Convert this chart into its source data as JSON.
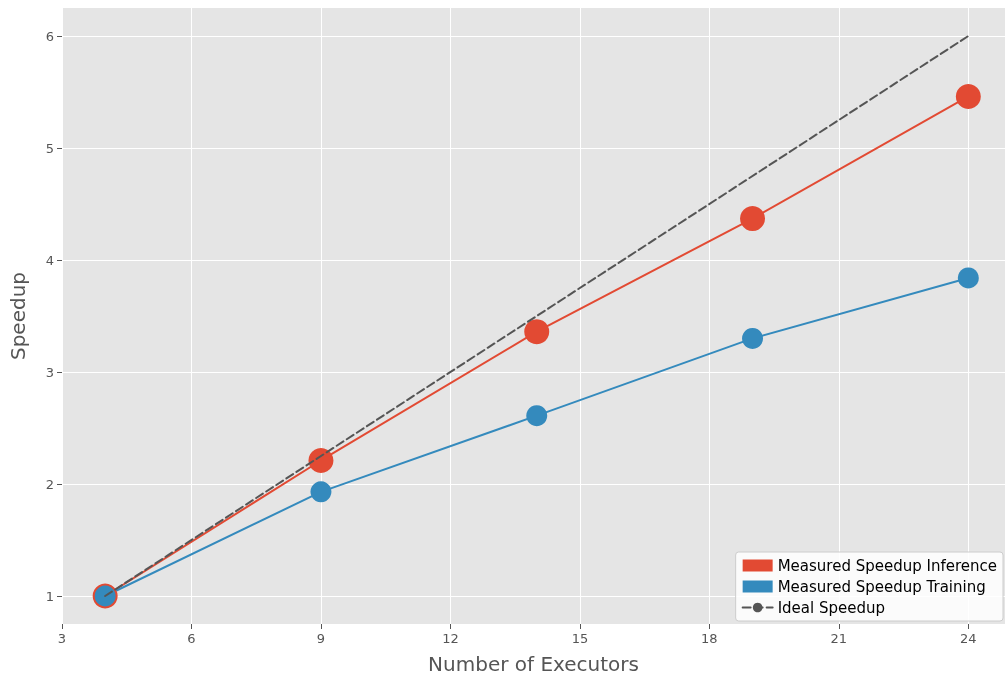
{
  "chart_data": {
    "type": "line",
    "xlabel": "Number of Executors",
    "ylabel": "Speedup",
    "xlim": [
      3,
      24.85
    ],
    "xticks": [
      3,
      6,
      9,
      12,
      15,
      18,
      21,
      24
    ],
    "ylim": [
      0.75,
      6.25
    ],
    "yticks": [
      1,
      2,
      3,
      4,
      5,
      6
    ],
    "grid": true,
    "legend": "bottom right",
    "marker": "circle",
    "series": [
      {
        "name": "Measured Speedup Inference",
        "color": "#e24a33",
        "x": [
          4,
          9,
          14,
          19,
          24
        ],
        "values": [
          1,
          2.21,
          3.36,
          4.37,
          5.46
        ]
      },
      {
        "name": "Measured Speedup Training",
        "color": "#348abd",
        "x": [
          4,
          9,
          14,
          19,
          24
        ],
        "values": [
          1,
          1.93,
          2.61,
          3.3,
          3.84
        ]
      },
      {
        "name": "Ideal Speedup",
        "color": "#555555",
        "x": [
          4,
          24
        ],
        "values": [
          1,
          6
        ],
        "marker": "none",
        "line_style": "dashed"
      }
    ]
  }
}
